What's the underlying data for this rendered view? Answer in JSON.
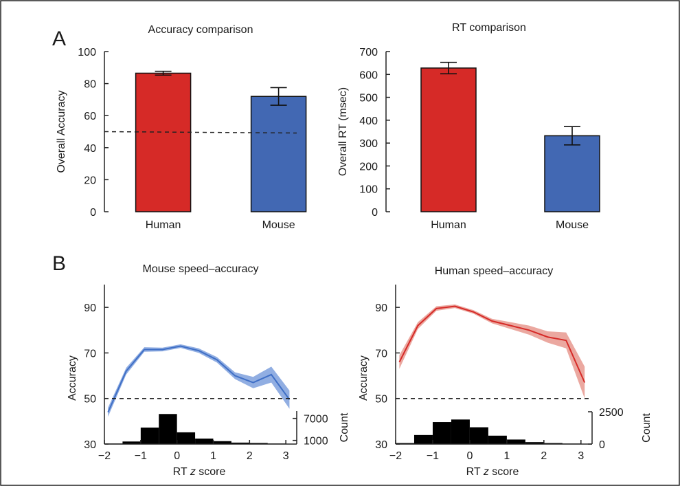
{
  "panel_labels": [
    "A",
    "B"
  ],
  "chart_data": [
    {
      "id": "accuracy",
      "type": "bar",
      "title": "Accuracy comparison",
      "ylabel": "Overall Accuracy",
      "xlabel": "",
      "categories": [
        "Human",
        "Mouse"
      ],
      "values": [
        86.5,
        72
      ],
      "errors": [
        1.2,
        5.5
      ],
      "colors": [
        "#d62a27",
        "#4268b3"
      ],
      "ylim": [
        0,
        100
      ],
      "yticks": [
        0,
        20,
        40,
        60,
        80,
        100
      ],
      "chance_line": 50,
      "grid": false
    },
    {
      "id": "rt",
      "type": "bar",
      "title": "RT comparison",
      "ylabel": "Overall RT (msec)",
      "xlabel": "",
      "categories": [
        "Human",
        "Mouse"
      ],
      "values": [
        628,
        332
      ],
      "errors": [
        25,
        40
      ],
      "colors": [
        "#d62a27",
        "#4268b3"
      ],
      "ylim": [
        0,
        700
      ],
      "yticks": [
        0,
        100,
        200,
        300,
        400,
        500,
        600,
        700
      ],
      "grid": false
    },
    {
      "id": "mouse_sa",
      "type": "line",
      "title": "Mouse speed–accuracy",
      "ylabel": "Accuracy",
      "xlabel_parts": [
        "RT ",
        "z",
        " score"
      ],
      "color": "#3f6fc6",
      "band_color": "#7ea0dd",
      "x": [
        -1.9,
        -1.4,
        -0.9,
        -0.4,
        0.1,
        0.6,
        1.1,
        1.6,
        2.1,
        2.6,
        3.1
      ],
      "y": [
        44,
        62,
        71.5,
        71.5,
        73,
        71,
        67,
        60,
        57,
        60.5,
        49.5
      ],
      "y_err": [
        2,
        1.5,
        1,
        0.8,
        0.8,
        1,
        1.2,
        1.5,
        2.5,
        3.5,
        4
      ],
      "xlim": [
        -2,
        3.3
      ],
      "xticks": [
        -2,
        -1,
        0,
        1,
        2,
        3
      ],
      "xtick_labels": [
        "−2",
        "−1",
        "0",
        "1",
        "2",
        "3"
      ],
      "ylim": [
        30,
        100
      ],
      "yticks": [
        30,
        50,
        70,
        90
      ],
      "chance_line": 50,
      "histogram": {
        "ylabel": "Count",
        "bins": [
          -2,
          -1.5,
          -1,
          -0.5,
          0,
          0.5,
          1,
          1.5,
          2,
          2.5,
          3
        ],
        "counts": [
          150,
          700,
          4500,
          8200,
          3200,
          1500,
          800,
          400,
          300,
          150
        ],
        "axis_max": 9000,
        "ticks": [
          1000,
          7000
        ],
        "tick_labels": [
          "1000",
          "7000"
        ]
      }
    },
    {
      "id": "human_sa",
      "type": "line",
      "title": "Human speed–accuracy",
      "ylabel": "Accuracy",
      "xlabel_parts": [
        "RT ",
        "z",
        " score"
      ],
      "color": "#d62a27",
      "band_color": "#e7998f",
      "x": [
        -1.9,
        -1.4,
        -0.9,
        -0.4,
        0.1,
        0.6,
        1.1,
        1.6,
        2.1,
        2.6,
        3.1
      ],
      "y": [
        66,
        82,
        89.5,
        90.5,
        88,
        84,
        82,
        80,
        77,
        75.5,
        57
      ],
      "y_err": [
        3,
        1.5,
        1,
        0.8,
        0.8,
        1,
        1.5,
        2,
        2.5,
        3.5,
        7
      ],
      "xlim": [
        -2,
        3.3
      ],
      "xticks": [
        -2,
        -1,
        0,
        1,
        2,
        3
      ],
      "xtick_labels": [
        "−2",
        "−1",
        "0",
        "1",
        "2",
        "3"
      ],
      "ylim": [
        30,
        100
      ],
      "yticks": [
        30,
        50,
        70,
        90
      ],
      "chance_line": 50,
      "histogram": {
        "ylabel": "Count",
        "bins": [
          -2,
          -1.5,
          -1,
          -0.5,
          0,
          0.5,
          1,
          1.5,
          2,
          2.5,
          3
        ],
        "counts": [
          80,
          700,
          1700,
          1900,
          1300,
          650,
          350,
          150,
          80,
          40
        ],
        "axis_max": 2500,
        "ticks": [
          0,
          2500
        ],
        "tick_labels": [
          "0",
          "2500"
        ]
      }
    }
  ]
}
